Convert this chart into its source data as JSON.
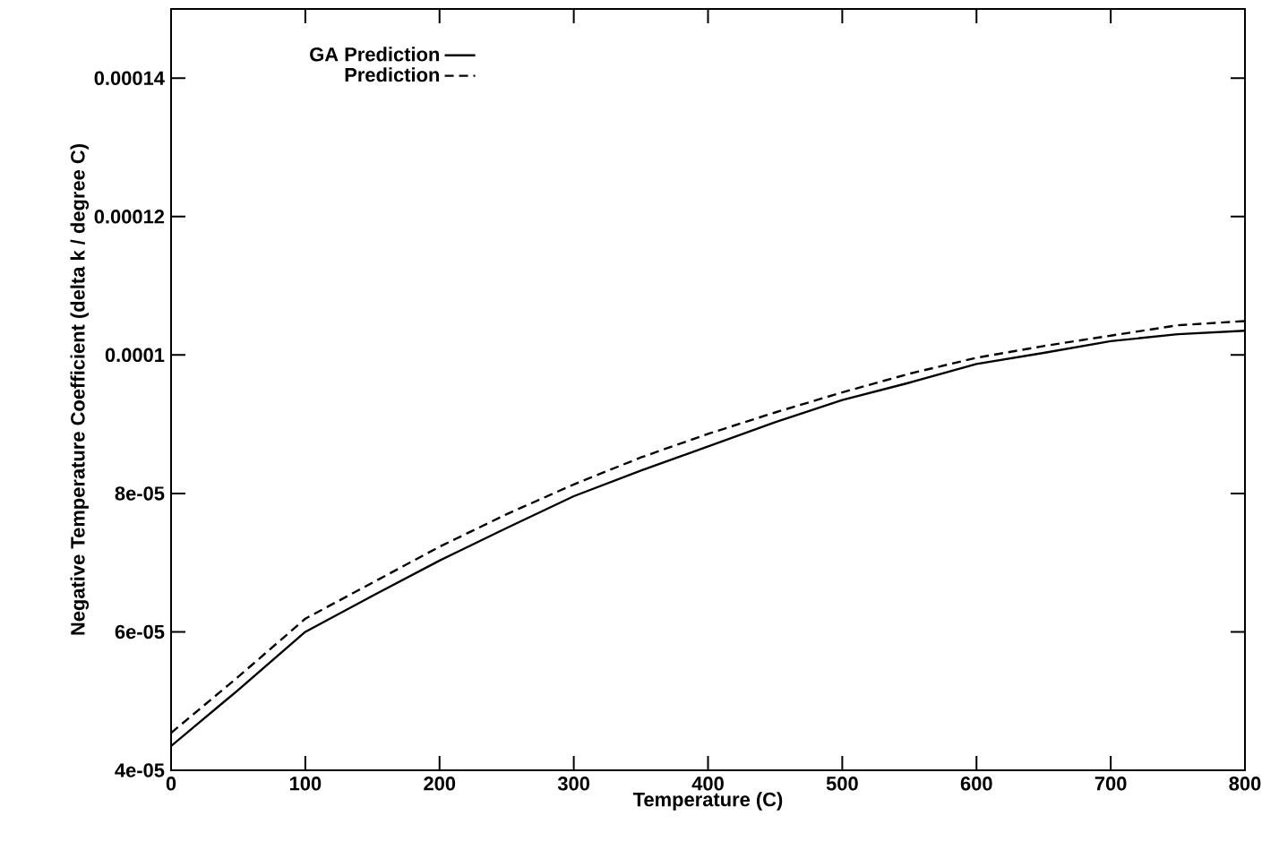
{
  "chart_data": {
    "type": "line",
    "xlabel": "Temperature (C)",
    "ylabel": "Negative Temperature Coefficient (delta k / degree C)",
    "xlim": [
      0,
      800
    ],
    "xticks": [
      0,
      100,
      200,
      300,
      400,
      500,
      600,
      700,
      800
    ],
    "ylim": [
      4e-05,
      0.00015
    ],
    "yticks": [
      {
        "value": 4e-05,
        "label": "4e-05"
      },
      {
        "value": 6e-05,
        "label": "6e-05"
      },
      {
        "value": 8e-05,
        "label": "8e-05"
      },
      {
        "value": 0.0001,
        "label": "0.0001"
      },
      {
        "value": 0.00012,
        "label": "0.00012"
      },
      {
        "value": 0.00014,
        "label": "0.00014"
      }
    ],
    "x": [
      0,
      50,
      100,
      150,
      200,
      250,
      300,
      350,
      400,
      450,
      500,
      550,
      600,
      650,
      700,
      750,
      800
    ],
    "legend": "top left",
    "grid": false,
    "marker": "none",
    "series": [
      {
        "name": "GA Prediction",
        "color": "#000000",
        "line_style": "solid",
        "values": [
          4.35e-05,
          5.16e-05,
          6e-05,
          6.52e-05,
          7.03e-05,
          7.5e-05,
          7.96e-05,
          8.33e-05,
          8.68e-05,
          9.03e-05,
          9.35e-05,
          9.6e-05,
          9.87e-05,
          0.0001003,
          0.000102,
          0.000103,
          0.0001035
        ]
      },
      {
        "name": "Prediction",
        "color": "#000000",
        "line_style": "dashed",
        "values": [
          4.54e-05,
          5.35e-05,
          6.19e-05,
          6.71e-05,
          7.23e-05,
          7.7e-05,
          8.13e-05,
          8.52e-05,
          8.86e-05,
          9.17e-05,
          9.46e-05,
          9.73e-05,
          9.96e-05,
          0.0001013,
          0.0001028,
          0.0001043,
          0.0001049
        ]
      }
    ]
  }
}
